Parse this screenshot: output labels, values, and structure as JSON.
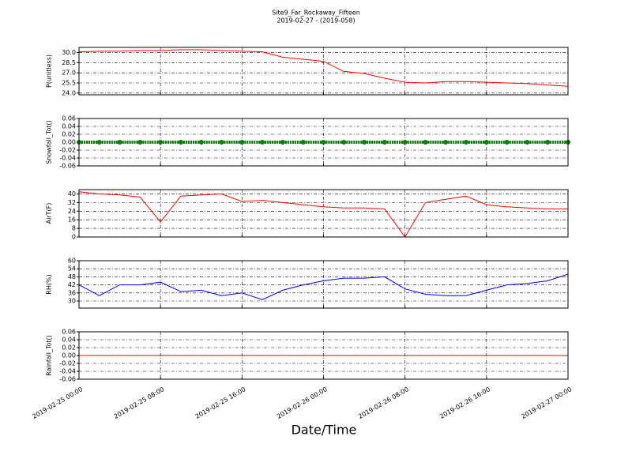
{
  "figure": {
    "title": "Site9_Far_Rockaway_Fifteen",
    "subtitle": "2019-02-27 - (2019-058)",
    "xlabel": "Date/Time"
  },
  "chart_data": [
    {
      "type": "line",
      "ylabel": "P(unitless)",
      "color": "#ff0000",
      "x": [
        "2019-02-25 00:00",
        "2019-02-25 02:00",
        "2019-02-25 04:00",
        "2019-02-25 06:00",
        "2019-02-25 08:00",
        "2019-02-25 10:00",
        "2019-02-25 12:00",
        "2019-02-25 14:00",
        "2019-02-25 16:00",
        "2019-02-25 18:00",
        "2019-02-25 20:00",
        "2019-02-25 22:00",
        "2019-02-26 00:00",
        "2019-02-26 02:00",
        "2019-02-26 04:00",
        "2019-02-26 06:00",
        "2019-02-26 08:00",
        "2019-02-26 10:00",
        "2019-02-26 12:00",
        "2019-02-26 14:00",
        "2019-02-26 16:00",
        "2019-02-26 18:00",
        "2019-02-26 20:00",
        "2019-02-26 22:00",
        "2019-02-27 00:00"
      ],
      "values": [
        30.1,
        30.2,
        30.2,
        30.3,
        30.3,
        30.4,
        30.4,
        30.3,
        30.2,
        30.1,
        29.3,
        29.0,
        28.7,
        27.2,
        26.9,
        26.2,
        25.6,
        25.5,
        25.7,
        25.7,
        25.6,
        25.5,
        25.4,
        25.2,
        25.0
      ],
      "xlim": [
        "2019-02-25 00:00",
        "2019-02-27 00:00"
      ],
      "xticks": [
        "2019-02-25 00:00",
        "2019-02-25 08:00",
        "2019-02-25 16:00",
        "2019-02-26 00:00",
        "2019-02-26 08:00",
        "2019-02-26 16:00",
        "2019-02-27 00:00"
      ],
      "ylim": [
        23.75,
        30.75
      ],
      "yticks": [
        {
          "value": 24,
          "label": "24.0"
        },
        25.5,
        {
          "value": 27,
          "label": "27.0"
        },
        28.5,
        {
          "value": 30,
          "label": "30.0"
        }
      ],
      "grid": true
    },
    {
      "type": "scatter",
      "ylabel": "Snowfall_Tot()",
      "color": "#008000",
      "x": [
        "2019-02-25 00:00",
        "2019-02-25 02:00",
        "2019-02-25 04:00",
        "2019-02-25 06:00",
        "2019-02-25 08:00",
        "2019-02-25 10:00",
        "2019-02-25 12:00",
        "2019-02-25 14:00",
        "2019-02-25 16:00",
        "2019-02-25 18:00",
        "2019-02-25 20:00",
        "2019-02-25 22:00",
        "2019-02-26 00:00",
        "2019-02-26 02:00",
        "2019-02-26 04:00",
        "2019-02-26 06:00",
        "2019-02-26 08:00",
        "2019-02-26 10:00",
        "2019-02-26 12:00",
        "2019-02-26 14:00",
        "2019-02-26 16:00",
        "2019-02-26 18:00",
        "2019-02-26 20:00",
        "2019-02-26 22:00",
        "2019-02-27 00:00"
      ],
      "values": [
        0,
        0,
        0,
        0,
        0,
        0,
        0,
        0,
        0,
        0,
        0,
        0,
        0,
        0,
        0,
        0,
        0,
        0,
        0,
        0,
        0,
        0,
        0,
        0,
        0
      ],
      "xlim": [
        "2019-02-25 00:00",
        "2019-02-27 00:00"
      ],
      "xticks": [
        "2019-02-25 00:00",
        "2019-02-25 08:00",
        "2019-02-25 16:00",
        "2019-02-26 00:00",
        "2019-02-26 08:00",
        "2019-02-26 16:00",
        "2019-02-27 00:00"
      ],
      "ylim": [
        -0.06,
        0.06
      ],
      "yticks": [
        -0.06,
        -0.04,
        -0.02,
        {
          "value": 0,
          "label": "0.00"
        },
        0.02,
        0.04,
        0.06
      ],
      "grid": true
    },
    {
      "type": "line",
      "ylabel": "AirT(F)",
      "color": "#ff0000",
      "x": [
        "2019-02-25 00:00",
        "2019-02-25 02:00",
        "2019-02-25 04:00",
        "2019-02-25 06:00",
        "2019-02-25 08:00",
        "2019-02-25 10:00",
        "2019-02-25 12:00",
        "2019-02-25 14:00",
        "2019-02-25 16:00",
        "2019-02-25 18:00",
        "2019-02-25 20:00",
        "2019-02-25 22:00",
        "2019-02-26 00:00",
        "2019-02-26 02:00",
        "2019-02-26 04:00",
        "2019-02-26 06:00",
        "2019-02-26 08:00",
        "2019-02-26 10:00",
        "2019-02-26 12:00",
        "2019-02-26 14:00",
        "2019-02-26 16:00",
        "2019-02-26 18:00",
        "2019-02-26 20:00",
        "2019-02-26 22:00",
        "2019-02-27 00:00"
      ],
      "values": [
        42,
        40,
        39,
        37,
        14,
        38,
        39,
        40,
        33,
        34,
        32,
        30,
        28,
        27,
        27,
        26,
        0,
        32,
        35,
        38,
        30,
        28,
        27,
        26,
        26
      ],
      "xlim": [
        "2019-02-25 00:00",
        "2019-02-27 00:00"
      ],
      "xticks": [
        "2019-02-25 00:00",
        "2019-02-25 08:00",
        "2019-02-25 16:00",
        "2019-02-26 00:00",
        "2019-02-26 08:00",
        "2019-02-26 16:00",
        "2019-02-27 00:00"
      ],
      "ylim": [
        0,
        44
      ],
      "yticks": [
        0,
        8,
        16,
        24,
        32,
        40
      ],
      "grid": true
    },
    {
      "type": "line",
      "ylabel": "RH(%)",
      "color": "#0000ff",
      "x": [
        "2019-02-25 00:00",
        "2019-02-25 02:00",
        "2019-02-25 04:00",
        "2019-02-25 06:00",
        "2019-02-25 08:00",
        "2019-02-25 10:00",
        "2019-02-25 12:00",
        "2019-02-25 14:00",
        "2019-02-25 16:00",
        "2019-02-25 18:00",
        "2019-02-25 20:00",
        "2019-02-25 22:00",
        "2019-02-26 00:00",
        "2019-02-26 02:00",
        "2019-02-26 04:00",
        "2019-02-26 06:00",
        "2019-02-26 08:00",
        "2019-02-26 10:00",
        "2019-02-26 12:00",
        "2019-02-26 14:00",
        "2019-02-26 16:00",
        "2019-02-26 18:00",
        "2019-02-26 20:00",
        "2019-02-26 22:00",
        "2019-02-27 00:00"
      ],
      "values": [
        42,
        34,
        42,
        42,
        44,
        37,
        38,
        34,
        36,
        31,
        38,
        42,
        45,
        47,
        47,
        48,
        39,
        35,
        34,
        34,
        38,
        42,
        43,
        45,
        50
      ],
      "xlim": [
        "2019-02-25 00:00",
        "2019-02-27 00:00"
      ],
      "xticks": [
        "2019-02-25 00:00",
        "2019-02-25 08:00",
        "2019-02-25 16:00",
        "2019-02-26 00:00",
        "2019-02-26 08:00",
        "2019-02-26 16:00",
        "2019-02-27 00:00"
      ],
      "ylim": [
        24.7,
        60
      ],
      "yticks": [
        30,
        36,
        42,
        48,
        54,
        60
      ],
      "grid": true
    },
    {
      "type": "line",
      "ylabel": "Rainfall_Tot()",
      "color": "#ff0000",
      "x": [
        "2019-02-25 00:00",
        "2019-02-25 02:00",
        "2019-02-25 04:00",
        "2019-02-25 06:00",
        "2019-02-25 08:00",
        "2019-02-25 10:00",
        "2019-02-25 12:00",
        "2019-02-25 14:00",
        "2019-02-25 16:00",
        "2019-02-25 18:00",
        "2019-02-25 20:00",
        "2019-02-25 22:00",
        "2019-02-26 00:00",
        "2019-02-26 02:00",
        "2019-02-26 04:00",
        "2019-02-26 06:00",
        "2019-02-26 08:00",
        "2019-02-26 10:00",
        "2019-02-26 12:00",
        "2019-02-26 14:00",
        "2019-02-26 16:00",
        "2019-02-26 18:00",
        "2019-02-26 20:00",
        "2019-02-26 22:00",
        "2019-02-27 00:00"
      ],
      "values": [
        0,
        0,
        0,
        0,
        0,
        0,
        0,
        0,
        0,
        0,
        0,
        0,
        0,
        0,
        0,
        0,
        0,
        0,
        0,
        0,
        0,
        0,
        0,
        0,
        0
      ],
      "xlim": [
        "2019-02-25 00:00",
        "2019-02-27 00:00"
      ],
      "xticks": [
        "2019-02-25 00:00",
        "2019-02-25 08:00",
        "2019-02-25 16:00",
        "2019-02-26 00:00",
        "2019-02-26 08:00",
        "2019-02-26 16:00",
        "2019-02-27 00:00"
      ],
      "ylim": [
        -0.06,
        0.06
      ],
      "yticks": [
        -0.06,
        -0.04,
        -0.02,
        {
          "value": 0,
          "label": "0.00"
        },
        0.02,
        0.04,
        0.06
      ],
      "grid": true
    }
  ]
}
